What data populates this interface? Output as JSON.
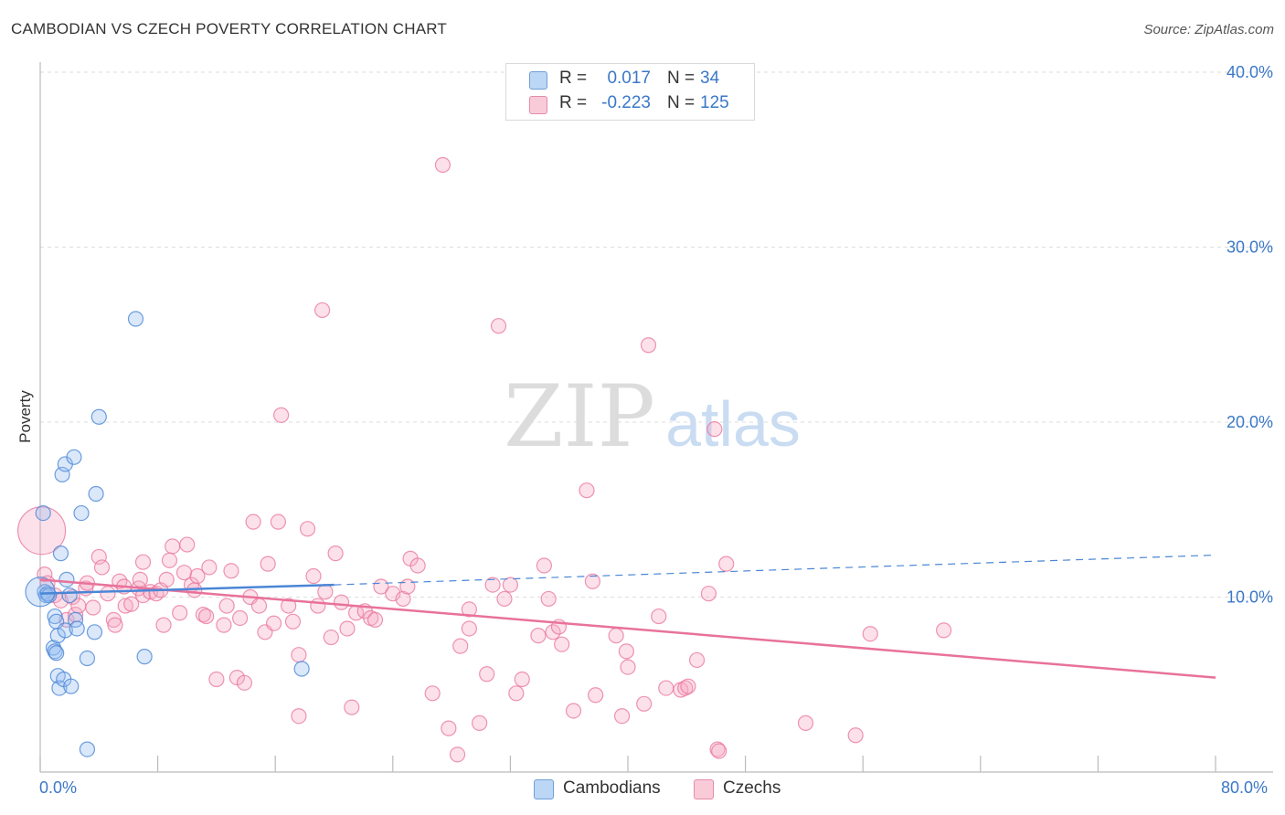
{
  "header": {
    "title": "CAMBODIAN VS CZECH POVERTY CORRELATION CHART",
    "source": "Source: ZipAtlas.com"
  },
  "watermark": {
    "zip": "ZIP",
    "atlas": "atlas"
  },
  "legend_top": {
    "rows": [
      {
        "r_label": "R =",
        "r_value": "0.017",
        "n_label": "N =",
        "n_value": "34",
        "color": "#a8c8f0"
      },
      {
        "r_label": "R =",
        "r_value": "-0.223",
        "n_label": "N =",
        "n_value": "125",
        "color": "#f5b6ca"
      }
    ]
  },
  "legend_bottom": {
    "items": [
      {
        "label": "Cambodians",
        "color": "#a8c8f0"
      },
      {
        "label": "Czechs",
        "color": "#f5b6ca"
      }
    ]
  },
  "chart_data": {
    "type": "scatter",
    "title": "CAMBODIAN VS CZECH POVERTY CORRELATION CHART",
    "xlabel": "",
    "ylabel": "Poverty",
    "xlim": [
      0,
      80
    ],
    "ylim": [
      0,
      40
    ],
    "x_tick_labels": [
      "0.0%",
      "80.0%"
    ],
    "y_ticks": [
      10,
      20,
      30,
      40
    ],
    "y_tick_labels": [
      "10.0%",
      "20.0%",
      "30.0%",
      "40.0%"
    ],
    "grid": true,
    "colors": {
      "cambodians": "#4a86d6",
      "czechs": "#e8729a"
    },
    "series": [
      {
        "name": "Cambodians",
        "points": [
          [
            0.2,
            14.8
          ],
          [
            0.3,
            10.3
          ],
          [
            0.4,
            10.1
          ],
          [
            0.5,
            10.2
          ],
          [
            0.6,
            10.1
          ],
          [
            0.9,
            7.1
          ],
          [
            1.0,
            8.9
          ],
          [
            1.0,
            6.9
          ],
          [
            1.1,
            8.6
          ],
          [
            1.1,
            6.8
          ],
          [
            1.2,
            5.5
          ],
          [
            1.2,
            7.8
          ],
          [
            1.3,
            4.8
          ],
          [
            1.4,
            12.5
          ],
          [
            1.5,
            17.0
          ],
          [
            1.6,
            5.3
          ],
          [
            1.7,
            8.1
          ],
          [
            1.7,
            17.6
          ],
          [
            1.8,
            11.0
          ],
          [
            2.0,
            10.1
          ],
          [
            2.1,
            4.9
          ],
          [
            2.3,
            18.0
          ],
          [
            2.4,
            8.7
          ],
          [
            2.5,
            8.2
          ],
          [
            2.8,
            14.8
          ],
          [
            3.2,
            6.5
          ],
          [
            3.2,
            1.3
          ],
          [
            3.7,
            8.0
          ],
          [
            3.8,
            15.9
          ],
          [
            4.0,
            20.3
          ],
          [
            6.5,
            25.9
          ],
          [
            7.1,
            6.6
          ],
          [
            17.8,
            5.9
          ],
          [
            0.0,
            10.3
          ]
        ],
        "trend": {
          "solid": [
            [
              0.0,
              10.2
            ],
            [
              20.0,
              10.7
            ]
          ],
          "dashed": [
            [
              20.0,
              10.7
            ],
            [
              80.0,
              12.4
            ]
          ]
        }
      },
      {
        "name": "Czechs",
        "points": [
          [
            0.1,
            13.8
          ],
          [
            0.3,
            11.3
          ],
          [
            0.5,
            10.8
          ],
          [
            1.0,
            10.1
          ],
          [
            1.4,
            9.8
          ],
          [
            1.8,
            8.7
          ],
          [
            2.2,
            10.0
          ],
          [
            2.4,
            9.0
          ],
          [
            2.6,
            9.5
          ],
          [
            3.1,
            10.5
          ],
          [
            3.2,
            10.8
          ],
          [
            3.6,
            9.4
          ],
          [
            4.0,
            12.3
          ],
          [
            4.2,
            11.7
          ],
          [
            4.6,
            10.2
          ],
          [
            5.0,
            8.7
          ],
          [
            5.1,
            8.4
          ],
          [
            5.4,
            10.9
          ],
          [
            5.7,
            10.6
          ],
          [
            5.8,
            9.5
          ],
          [
            6.2,
            9.6
          ],
          [
            6.7,
            10.5
          ],
          [
            6.8,
            11.0
          ],
          [
            7.0,
            10.1
          ],
          [
            7.0,
            12.0
          ],
          [
            7.5,
            10.3
          ],
          [
            7.9,
            10.2
          ],
          [
            8.2,
            10.4
          ],
          [
            8.4,
            8.4
          ],
          [
            8.6,
            11.0
          ],
          [
            8.8,
            12.1
          ],
          [
            9.0,
            12.9
          ],
          [
            9.5,
            9.1
          ],
          [
            9.8,
            11.4
          ],
          [
            10.0,
            13.0
          ],
          [
            10.3,
            10.7
          ],
          [
            10.5,
            10.4
          ],
          [
            10.7,
            11.2
          ],
          [
            11.1,
            9.0
          ],
          [
            11.3,
            8.9
          ],
          [
            11.5,
            11.7
          ],
          [
            12.0,
            5.3
          ],
          [
            12.5,
            8.4
          ],
          [
            12.7,
            9.5
          ],
          [
            13.0,
            11.5
          ],
          [
            13.4,
            5.4
          ],
          [
            13.6,
            8.8
          ],
          [
            13.9,
            5.1
          ],
          [
            14.3,
            10.0
          ],
          [
            14.5,
            14.3
          ],
          [
            14.9,
            9.5
          ],
          [
            15.3,
            8.0
          ],
          [
            15.5,
            11.9
          ],
          [
            15.9,
            8.5
          ],
          [
            16.2,
            14.3
          ],
          [
            16.4,
            20.4
          ],
          [
            16.9,
            9.5
          ],
          [
            17.2,
            8.6
          ],
          [
            17.6,
            6.7
          ],
          [
            17.6,
            3.2
          ],
          [
            18.2,
            13.9
          ],
          [
            18.6,
            11.2
          ],
          [
            18.9,
            9.5
          ],
          [
            19.2,
            26.4
          ],
          [
            19.4,
            10.3
          ],
          [
            19.8,
            7.7
          ],
          [
            20.1,
            12.5
          ],
          [
            20.5,
            9.7
          ],
          [
            20.9,
            8.2
          ],
          [
            21.2,
            3.7
          ],
          [
            21.5,
            9.1
          ],
          [
            22.1,
            9.2
          ],
          [
            22.5,
            8.8
          ],
          [
            22.8,
            8.7
          ],
          [
            23.2,
            10.6
          ],
          [
            24.0,
            10.2
          ],
          [
            24.7,
            9.9
          ],
          [
            25.0,
            10.6
          ],
          [
            25.2,
            12.2
          ],
          [
            25.7,
            11.8
          ],
          [
            26.7,
            4.5
          ],
          [
            27.4,
            34.7
          ],
          [
            27.8,
            2.5
          ],
          [
            28.4,
            1.0
          ],
          [
            28.6,
            7.2
          ],
          [
            29.2,
            9.3
          ],
          [
            29.2,
            8.2
          ],
          [
            29.9,
            2.8
          ],
          [
            30.4,
            5.6
          ],
          [
            30.8,
            10.7
          ],
          [
            31.2,
            25.5
          ],
          [
            31.6,
            9.9
          ],
          [
            32.0,
            10.7
          ],
          [
            32.4,
            4.5
          ],
          [
            32.8,
            5.3
          ],
          [
            33.9,
            7.8
          ],
          [
            34.3,
            11.8
          ],
          [
            34.6,
            9.9
          ],
          [
            34.9,
            8.0
          ],
          [
            35.3,
            8.3
          ],
          [
            35.5,
            7.3
          ],
          [
            36.3,
            3.5
          ],
          [
            37.2,
            16.1
          ],
          [
            37.6,
            10.9
          ],
          [
            37.8,
            4.4
          ],
          [
            39.2,
            7.8
          ],
          [
            39.6,
            3.2
          ],
          [
            39.9,
            6.9
          ],
          [
            40.0,
            6.0
          ],
          [
            41.1,
            3.9
          ],
          [
            41.4,
            24.4
          ],
          [
            42.1,
            8.9
          ],
          [
            42.6,
            4.8
          ],
          [
            43.6,
            4.7
          ],
          [
            43.9,
            4.8
          ],
          [
            44.1,
            4.9
          ],
          [
            44.7,
            6.4
          ],
          [
            45.5,
            10.2
          ],
          [
            45.9,
            19.6
          ],
          [
            46.1,
            1.3
          ],
          [
            46.2,
            1.2
          ],
          [
            46.7,
            11.9
          ],
          [
            52.1,
            2.8
          ],
          [
            55.5,
            2.1
          ],
          [
            56.5,
            7.9
          ],
          [
            61.5,
            8.1
          ]
        ],
        "trend": {
          "solid": [
            [
              0.0,
              11.0
            ],
            [
              80.0,
              5.4
            ]
          ]
        }
      }
    ]
  }
}
